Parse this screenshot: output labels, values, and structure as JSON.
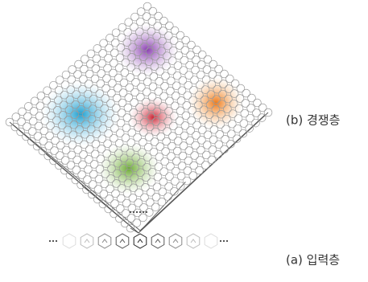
{
  "labels": {
    "competitive_layer": "(b) 경쟁층",
    "input_layer": "(a) 입력층"
  }
}
